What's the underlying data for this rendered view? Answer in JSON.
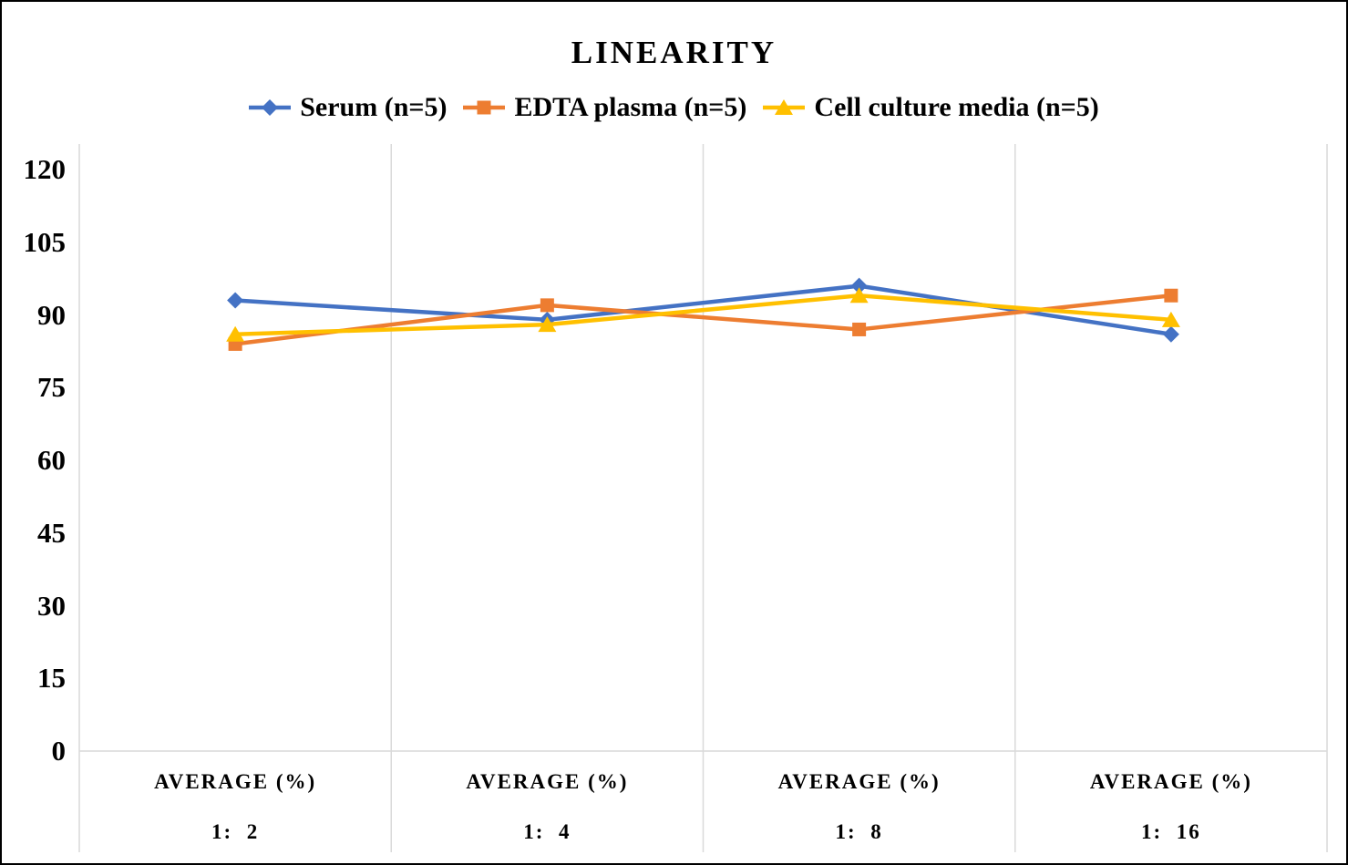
{
  "chart_data": {
    "type": "line",
    "title": "LINEARITY",
    "category_group_label": "AVERAGE (%)",
    "categories": [
      "1:  2",
      "1:  4",
      "1:  8",
      "1:  16"
    ],
    "series": [
      {
        "name": "Serum (n=5)",
        "marker": "diamond",
        "color": "#4472C4",
        "values": [
          93,
          89,
          96,
          86
        ]
      },
      {
        "name": "EDTA plasma (n=5)",
        "marker": "square",
        "color": "#ED7D31",
        "values": [
          84,
          92,
          87,
          94
        ]
      },
      {
        "name": "Cell culture media (n=5)",
        "marker": "triangle",
        "color": "#FFC000",
        "values": [
          86,
          88,
          94,
          89
        ]
      }
    ],
    "ylim": [
      0,
      120
    ],
    "yticks": [
      0,
      15,
      30,
      45,
      60,
      75,
      90,
      105,
      120
    ],
    "xlabel": "",
    "ylabel": "",
    "legend_position": "top",
    "grid": {
      "vertical_separators": true,
      "horizontal_gridlines": false
    },
    "colors": {
      "gridline": "#D9D9D9",
      "text": "#000000",
      "background": "#FFFFFF",
      "border": "#000000"
    }
  }
}
